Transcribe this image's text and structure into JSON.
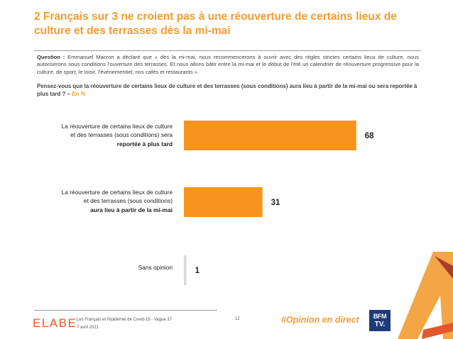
{
  "title": "2 Français sur 3 ne croient pas à une réouverture de certains lieux de culture et des terrasses dès la mi-mai",
  "question": {
    "label": "Question :",
    "text": "Emmanuel Macron a déclaré que « dès la mi-mai, nous recommencerons à ouvrir avec des règles strictes certains lieux de culture, nous autoriserons sous conditions l'ouverture des terrasses. Et nous allons bâtir entre la mi-mai et le début de l'été un calendrier de réouverture progressive pour la culture, de sport, le loisir, l'événementiel, nos cafés et restaurants »."
  },
  "prompt": {
    "text": "Pensez-vous que la réouverture de certains lieux de culture et des terrasses (sous conditions) aura lieu à partir de la mi-mai ou sera reportée à plus tard ? –",
    "unit": "En %"
  },
  "chart_data": {
    "type": "bar",
    "orientation": "horizontal",
    "xlim": [
      0,
      100
    ],
    "grid": false,
    "color": "#F7941D",
    "categories": [
      {
        "line1": "La réouverture de certains lieux de culture",
        "line2": "et des terrasses (sous conditions) sera",
        "line3": "reportée à plus tard"
      },
      {
        "line1": "La réouverture de certains lieux de culture",
        "line2": "et des terrasses (sous conditions)",
        "line3": "aura lieu à partir de la mi-mai"
      },
      {
        "line1": "Sans opinion",
        "line2": "",
        "line3": ""
      }
    ],
    "values": [
      68,
      31,
      1
    ],
    "value_labels": [
      "68",
      "31",
      "1"
    ]
  },
  "footer": {
    "logo": "ELABE",
    "study": "Les Français et l'épidémie de Covid-19 - Vague 37",
    "date": "7 avril 2021",
    "page": "12",
    "hashtag": "#Opinion en direct",
    "brand_top": "BFM",
    "brand_bottom": "TV."
  }
}
